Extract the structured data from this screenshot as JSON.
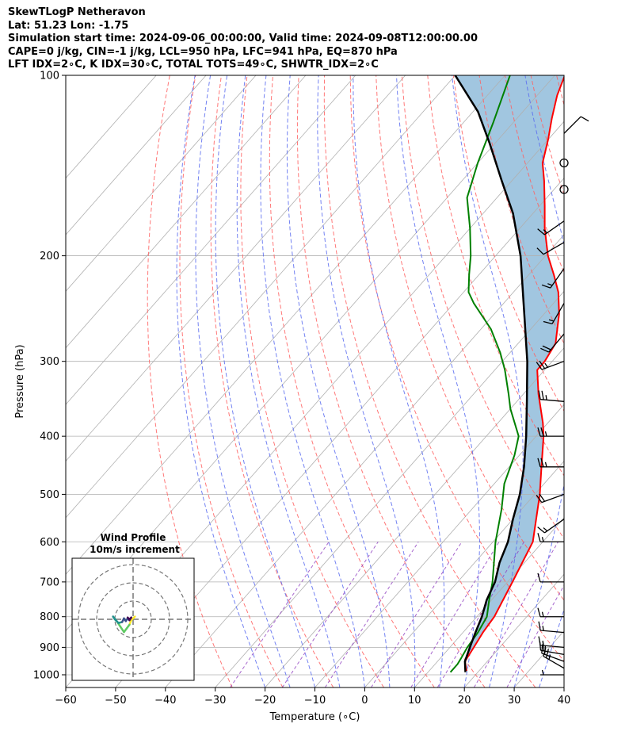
{
  "header": {
    "line1": "SkewTLogP Netheravon",
    "line2": "Lat: 51.23   Lon: -1.75",
    "line3": "Simulation start time: 2024-09-06_00:00:00, Valid time: 2024-09-08T12:00:00.00",
    "line4": "CAPE=0 j/kg, CIN=-1 j/kg, LCL=950 hPa, LFC=941 hPa, EQ=870 hPa",
    "line5": "LFT IDX=2∘C, K IDX=30∘C, TOTAL TOTS=49∘C, SHWTR_IDX=2∘C"
  },
  "chart_data": {
    "type": "skewt-logp",
    "xlabel": "Temperature (∘C)",
    "ylabel": "Pressure (hPa)",
    "xlim": [
      -60,
      40
    ],
    "ylim": [
      1050,
      100
    ],
    "xticks": [
      -60,
      -50,
      -40,
      -30,
      -20,
      -10,
      0,
      10,
      20,
      30,
      40
    ],
    "xtick_labels": [
      "−60",
      "−50",
      "−40",
      "−30",
      "−20",
      "−10",
      "0",
      "10",
      "20",
      "30",
      "40"
    ],
    "yticks": [
      1000,
      900,
      800,
      700,
      600,
      500,
      400,
      300,
      200,
      100
    ],
    "yticks_labels": [
      "1000",
      "900",
      "800",
      "700",
      "600",
      "500",
      "400",
      "300",
      "200",
      "100"
    ],
    "colors": {
      "temperature": "#ff0000",
      "dewpoint": "#008000",
      "parcel": "#000000",
      "fill": "#a1c6e0",
      "dry_adiabat": "#ff6060",
      "moist_adiabat": "#5a6cf0",
      "mixing_ratio": "#9040c0",
      "isotherm": "#b0b0b0"
    },
    "temperature_profile": [
      {
        "p": 985,
        "t": 17.5
      },
      {
        "p": 950,
        "t": 15.5
      },
      {
        "p": 900,
        "t": 14.8
      },
      {
        "p": 850,
        "t": 14.0
      },
      {
        "p": 800,
        "t": 13.5
      },
      {
        "p": 700,
        "t": 11.0
      },
      {
        "p": 600,
        "t": 8.0
      },
      {
        "p": 500,
        "t": 1.0
      },
      {
        "p": 450,
        "t": -3.5
      },
      {
        "p": 400,
        "t": -8.5
      },
      {
        "p": 380,
        "t": -11.0
      },
      {
        "p": 340,
        "t": -17.0
      },
      {
        "p": 310,
        "t": -21.5
      },
      {
        "p": 300,
        "t": -21.5
      },
      {
        "p": 280,
        "t": -22.5
      },
      {
        "p": 250,
        "t": -27.0
      },
      {
        "p": 230,
        "t": -31.0
      },
      {
        "p": 215,
        "t": -35.0
      },
      {
        "p": 200,
        "t": -39.5
      },
      {
        "p": 180,
        "t": -45.0
      },
      {
        "p": 165,
        "t": -49.0
      },
      {
        "p": 150,
        "t": -53.5
      },
      {
        "p": 140,
        "t": -57.0
      },
      {
        "p": 128,
        "t": -60.0
      },
      {
        "p": 118,
        "t": -63.0
      },
      {
        "p": 108,
        "t": -66.0
      },
      {
        "p": 100,
        "t": -68.0
      }
    ],
    "dewpoint_profile": [
      {
        "p": 990,
        "t": 14.5
      },
      {
        "p": 960,
        "t": 14.5
      },
      {
        "p": 940,
        "t": 14.2
      },
      {
        "p": 900,
        "t": 13.5
      },
      {
        "p": 850,
        "t": 13.0
      },
      {
        "p": 800,
        "t": 12.0
      },
      {
        "p": 750,
        "t": 9.5
      },
      {
        "p": 700,
        "t": 7.0
      },
      {
        "p": 600,
        "t": 0.5
      },
      {
        "p": 530,
        "t": -4.0
      },
      {
        "p": 480,
        "t": -8.0
      },
      {
        "p": 430,
        "t": -11.0
      },
      {
        "p": 400,
        "t": -13.5
      },
      {
        "p": 360,
        "t": -20.0
      },
      {
        "p": 340,
        "t": -23.0
      },
      {
        "p": 310,
        "t": -28.0
      },
      {
        "p": 290,
        "t": -32.0
      },
      {
        "p": 265,
        "t": -38.0
      },
      {
        "p": 240,
        "t": -46.0
      },
      {
        "p": 230,
        "t": -49.0
      },
      {
        "p": 215,
        "t": -52.0
      },
      {
        "p": 200,
        "t": -55.0
      },
      {
        "p": 180,
        "t": -60.0
      },
      {
        "p": 160,
        "t": -66.0
      },
      {
        "p": 140,
        "t": -70.0
      },
      {
        "p": 120,
        "t": -74.0
      },
      {
        "p": 100,
        "t": -79.0
      }
    ],
    "parcel_profile": [
      {
        "p": 990,
        "t": 17.5
      },
      {
        "p": 950,
        "t": 15.5
      },
      {
        "p": 900,
        "t": 14.0
      },
      {
        "p": 850,
        "t": 12.5
      },
      {
        "p": 800,
        "t": 11.0
      },
      {
        "p": 750,
        "t": 9.0
      },
      {
        "p": 700,
        "t": 7.5
      },
      {
        "p": 650,
        "t": 5.0
      },
      {
        "p": 600,
        "t": 3.0
      },
      {
        "p": 550,
        "t": 0.0
      },
      {
        "p": 500,
        "t": -3.0
      },
      {
        "p": 450,
        "t": -7.0
      },
      {
        "p": 400,
        "t": -12.0
      },
      {
        "p": 350,
        "t": -18.0
      },
      {
        "p": 300,
        "t": -25.0
      },
      {
        "p": 250,
        "t": -34.0
      },
      {
        "p": 200,
        "t": -45.0
      },
      {
        "p": 170,
        "t": -54.0
      },
      {
        "p": 150,
        "t": -62.0
      },
      {
        "p": 130,
        "t": -71.0
      },
      {
        "p": 115,
        "t": -79.0
      },
      {
        "p": 100,
        "t": -90.0
      }
    ],
    "wind_barbs": [
      {
        "p": 1000,
        "kind": "barb",
        "dir": 270,
        "speed": 5
      },
      {
        "p": 975,
        "kind": "barb",
        "dir": 300,
        "speed": 25
      },
      {
        "p": 950,
        "kind": "barb",
        "dir": 290,
        "speed": 20
      },
      {
        "p": 925,
        "kind": "barb",
        "dir": 280,
        "speed": 20
      },
      {
        "p": 900,
        "kind": "barb",
        "dir": 275,
        "speed": 15
      },
      {
        "p": 850,
        "kind": "barb",
        "dir": 275,
        "speed": 15
      },
      {
        "p": 800,
        "kind": "barb",
        "dir": 270,
        "speed": 15
      },
      {
        "p": 700,
        "kind": "barb",
        "dir": 270,
        "speed": 10
      },
      {
        "p": 600,
        "kind": "barb",
        "dir": 270,
        "speed": 15
      },
      {
        "p": 550,
        "kind": "barb",
        "dir": 235,
        "speed": 15
      },
      {
        "p": 500,
        "kind": "barb",
        "dir": 250,
        "speed": 20
      },
      {
        "p": 450,
        "kind": "barb",
        "dir": 270,
        "speed": 25
      },
      {
        "p": 400,
        "kind": "barb",
        "dir": 270,
        "speed": 25
      },
      {
        "p": 350,
        "kind": "barb",
        "dir": 275,
        "speed": 25
      },
      {
        "p": 300,
        "kind": "barb",
        "dir": 250,
        "speed": 25
      },
      {
        "p": 270,
        "kind": "barb",
        "dir": 220,
        "speed": 20
      },
      {
        "p": 240,
        "kind": "barb",
        "dir": 210,
        "speed": 15
      },
      {
        "p": 210,
        "kind": "barb",
        "dir": 215,
        "speed": 15
      },
      {
        "p": 190,
        "kind": "barb",
        "dir": 240,
        "speed": 10
      },
      {
        "p": 175,
        "kind": "barb",
        "dir": 235,
        "speed": 15
      },
      {
        "p": 155,
        "kind": "calm"
      },
      {
        "p": 140,
        "kind": "calm"
      },
      {
        "p": 125,
        "kind": "barb",
        "dir": 45,
        "speed": 10
      }
    ],
    "hodograph": {
      "title_line1": "Wind Profile",
      "title_line2": "10m/s increment",
      "ring_step": 10,
      "rings": 3,
      "points": [
        {
          "u": 1.0,
          "v": 1.5
        },
        {
          "u": -1.0,
          "v": -0.5
        },
        {
          "u": -2.0,
          "v": -3.0
        },
        {
          "u": -3.5,
          "v": -5.0
        },
        {
          "u": -5.0,
          "v": -7.0
        },
        {
          "u": -7.0,
          "v": -4.0
        },
        {
          "u": -9.0,
          "v": -1.0
        },
        {
          "u": -11.0,
          "v": 1.5
        },
        {
          "u": -10.0,
          "v": 0.0
        },
        {
          "u": -8.0,
          "v": -2.0
        },
        {
          "u": -6.0,
          "v": -1.5
        },
        {
          "u": -5.0,
          "v": 0.5
        },
        {
          "u": -4.0,
          "v": -1.0
        },
        {
          "u": -3.0,
          "v": 0.5
        },
        {
          "u": -2.0,
          "v": -0.5
        },
        {
          "u": -1.0,
          "v": 1.0
        },
        {
          "u": -2.0,
          "v": 0.0
        },
        {
          "u": -3.0,
          "v": 1.0
        }
      ]
    }
  }
}
